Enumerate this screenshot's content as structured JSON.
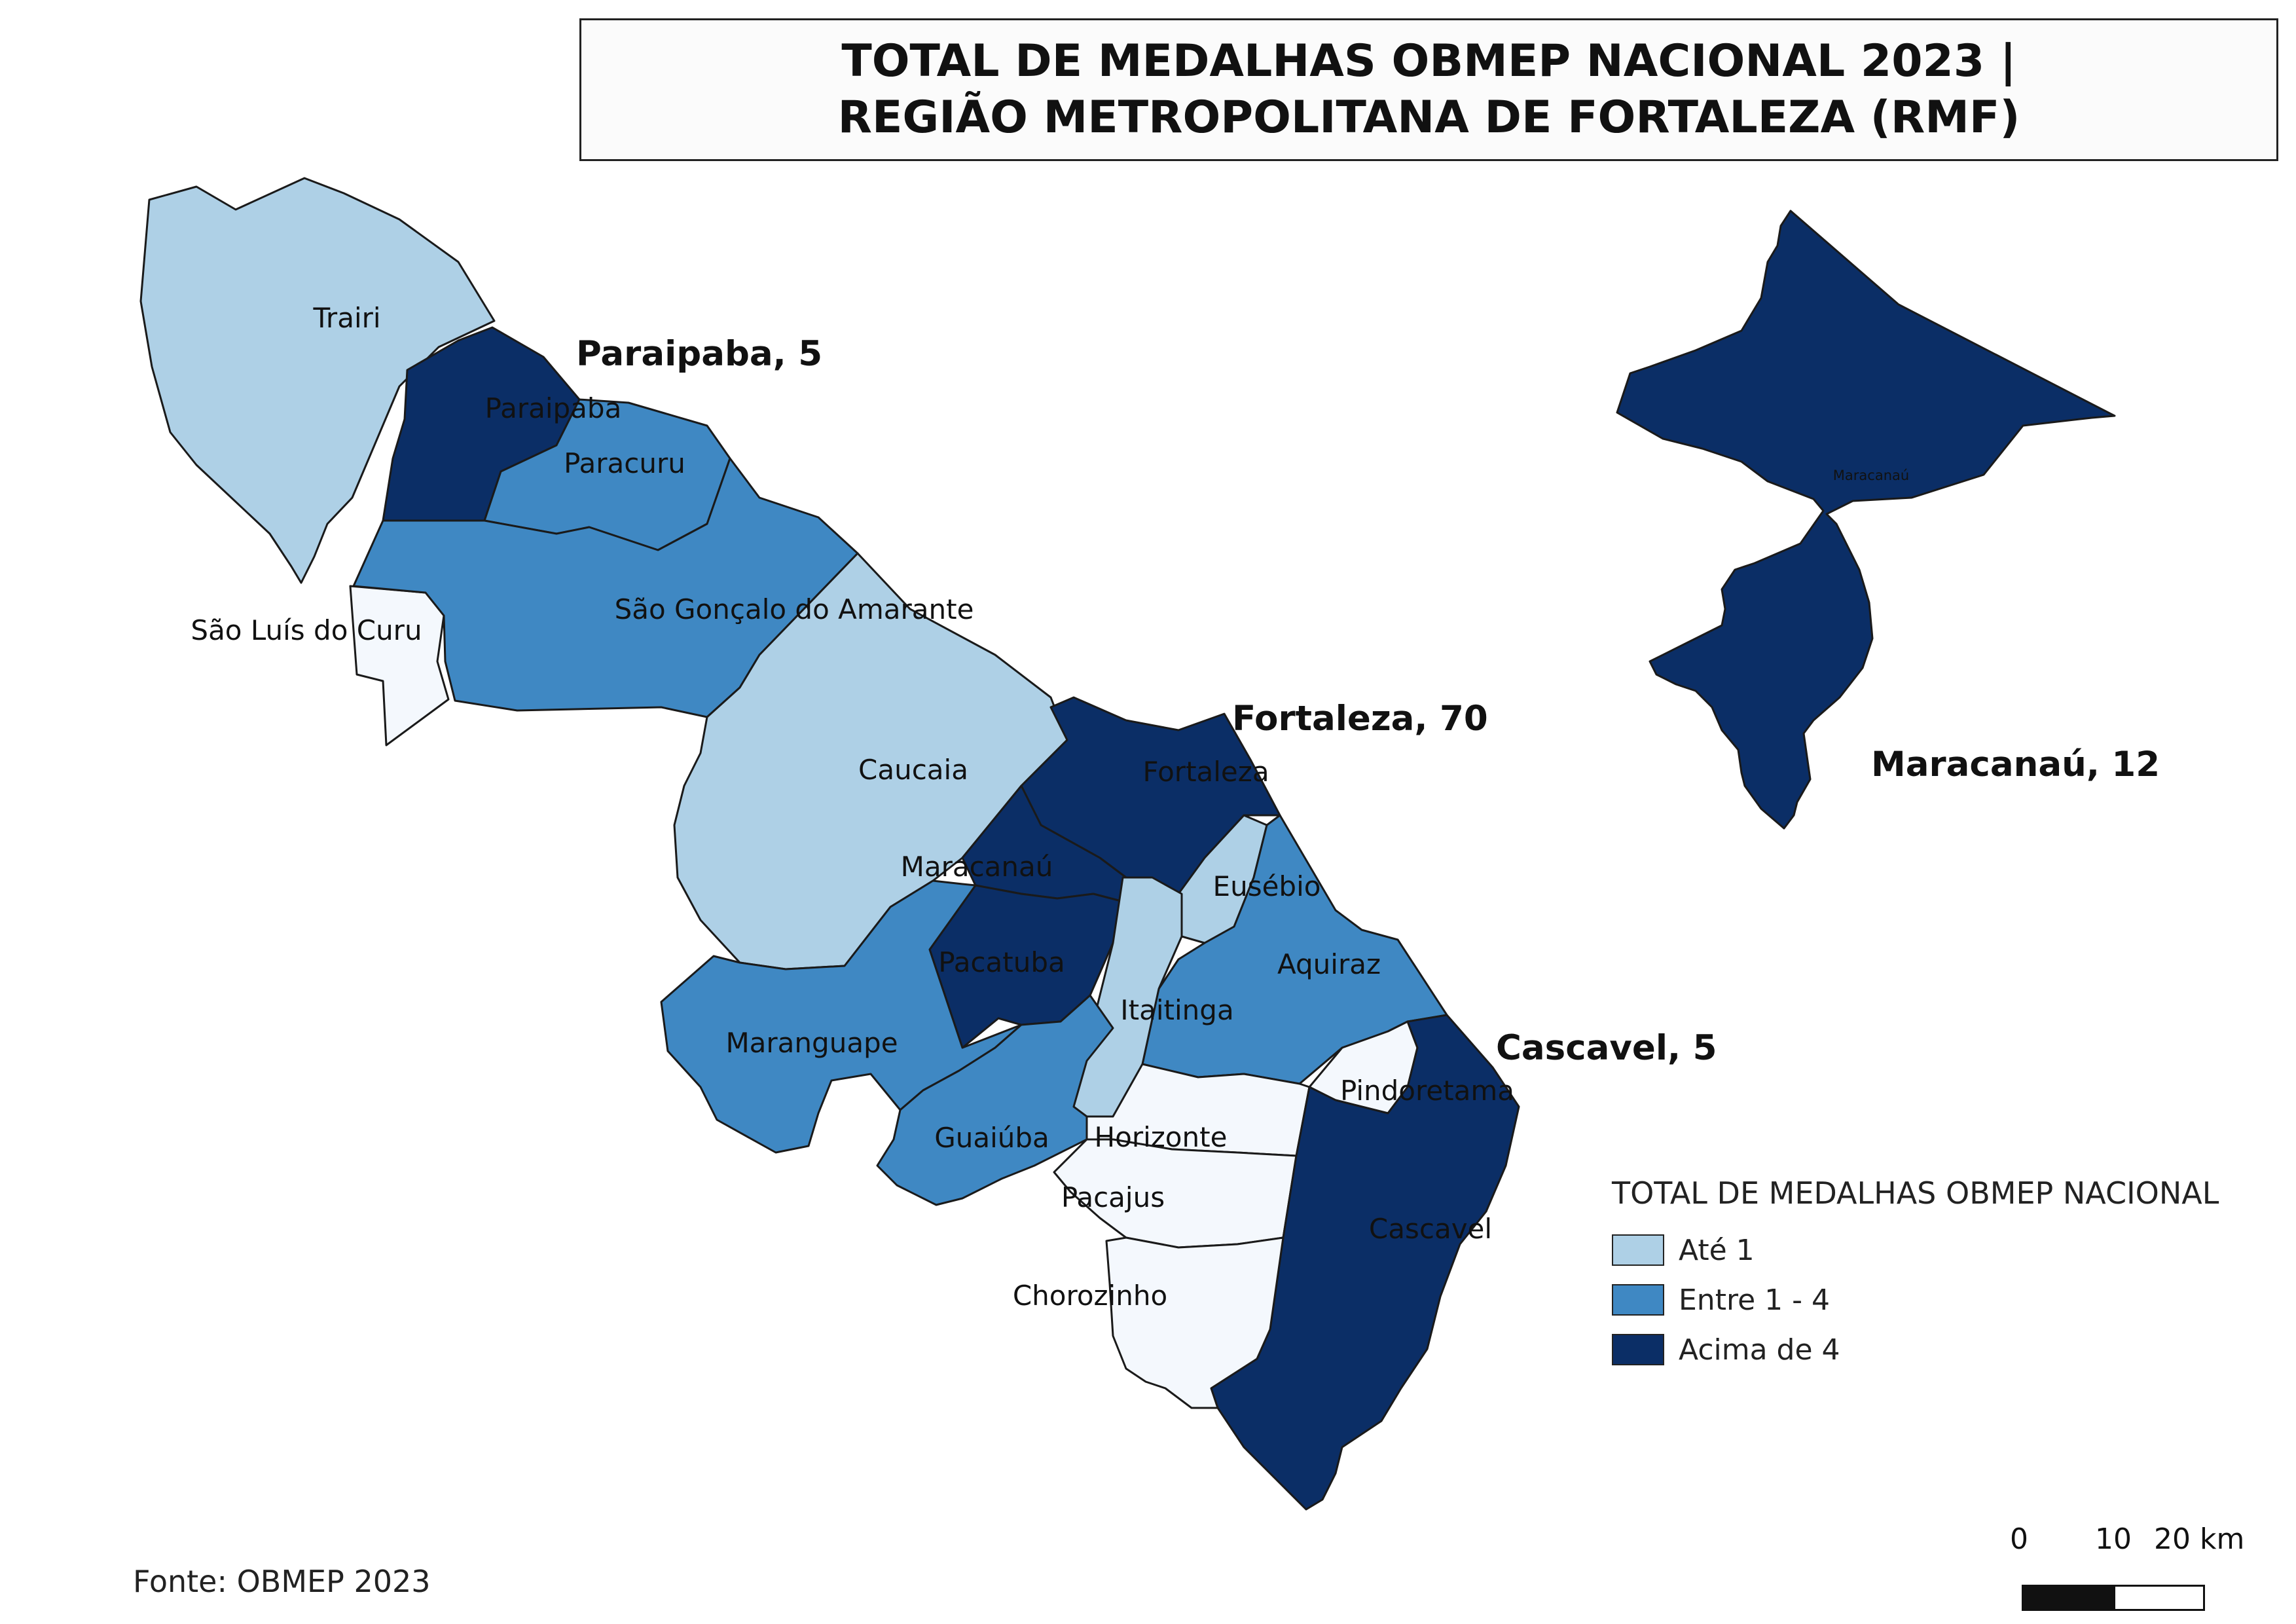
{
  "title": "TOTAL DE MEDALHAS OBMEP NACIONAL 2023 | REGIÃO METROPOLITANA DE FORTALEZA (RMF)",
  "colors": {
    "ate_1": "#aed0e6",
    "entre_1_4": "#3f88c3",
    "acima_4": "#0b2e66",
    "zero": "#f4f8fd",
    "border": "#1a1a1a"
  },
  "municipalities": [
    {
      "id": "trairi",
      "label": "Trairi",
      "class": "ate_1"
    },
    {
      "id": "paraipaba",
      "label": "Paraipaba",
      "class": "acima_4"
    },
    {
      "id": "paracuru",
      "label": "Paracuru",
      "class": "entre_1_4"
    },
    {
      "id": "sao-luis-do-curu",
      "label": "São Luís do Curu",
      "class": "zero"
    },
    {
      "id": "sao-goncalo-do-amarante",
      "label": "São Gonçalo do Amarante",
      "class": "entre_1_4"
    },
    {
      "id": "caucaia",
      "label": "Caucaia",
      "class": "ate_1"
    },
    {
      "id": "fortaleza",
      "label": "Fortaleza",
      "class": "acima_4"
    },
    {
      "id": "maracanau",
      "label": "Maracanaú",
      "class": "acima_4"
    },
    {
      "id": "eusebio",
      "label": "Eusébio",
      "class": "ate_1"
    },
    {
      "id": "pacatuba",
      "label": "Pacatuba",
      "class": "acima_4"
    },
    {
      "id": "aquiraz",
      "label": "Aquiraz",
      "class": "entre_1_4"
    },
    {
      "id": "itaitinga",
      "label": "Itaitinga",
      "class": "ate_1"
    },
    {
      "id": "maranguape",
      "label": "Maranguape",
      "class": "entre_1_4"
    },
    {
      "id": "pindoretama",
      "label": "Pindoretama",
      "class": "zero"
    },
    {
      "id": "guaiuba",
      "label": "Guaiúba",
      "class": "entre_1_4"
    },
    {
      "id": "horizonte",
      "label": "Horizonte",
      "class": "zero"
    },
    {
      "id": "pacajus",
      "label": "Pacajus",
      "class": "zero"
    },
    {
      "id": "cascavel",
      "label": "Cascavel",
      "class": "acima_4"
    },
    {
      "id": "chorozinho",
      "label": "Chorozinho",
      "class": "zero"
    }
  ],
  "highlights": [
    {
      "id": "paraipaba",
      "text": "Paraipaba, 5",
      "medals": 5
    },
    {
      "id": "fortaleza",
      "text": "Fortaleza, 70",
      "medals": 70
    },
    {
      "id": "cascavel",
      "text": "Cascavel, 5",
      "medals": 5
    },
    {
      "id": "maracanau",
      "text": "Maracanaú, 12",
      "medals": 12
    }
  ],
  "inset": {
    "label": "Maracanaú",
    "class": "acima_4"
  },
  "legend": {
    "title": "TOTAL DE MEDALHAS OBMEP NACIONAL",
    "items": [
      {
        "label": "Até 1",
        "class": "ate_1"
      },
      {
        "label": "Entre 1 - 4",
        "class": "entre_1_4"
      },
      {
        "label": "Acima de 4",
        "class": "acima_4"
      }
    ]
  },
  "scale_bar": {
    "labels": [
      "0",
      "10",
      "20 km"
    ]
  },
  "source": "Fonte: OBMEP 2023"
}
